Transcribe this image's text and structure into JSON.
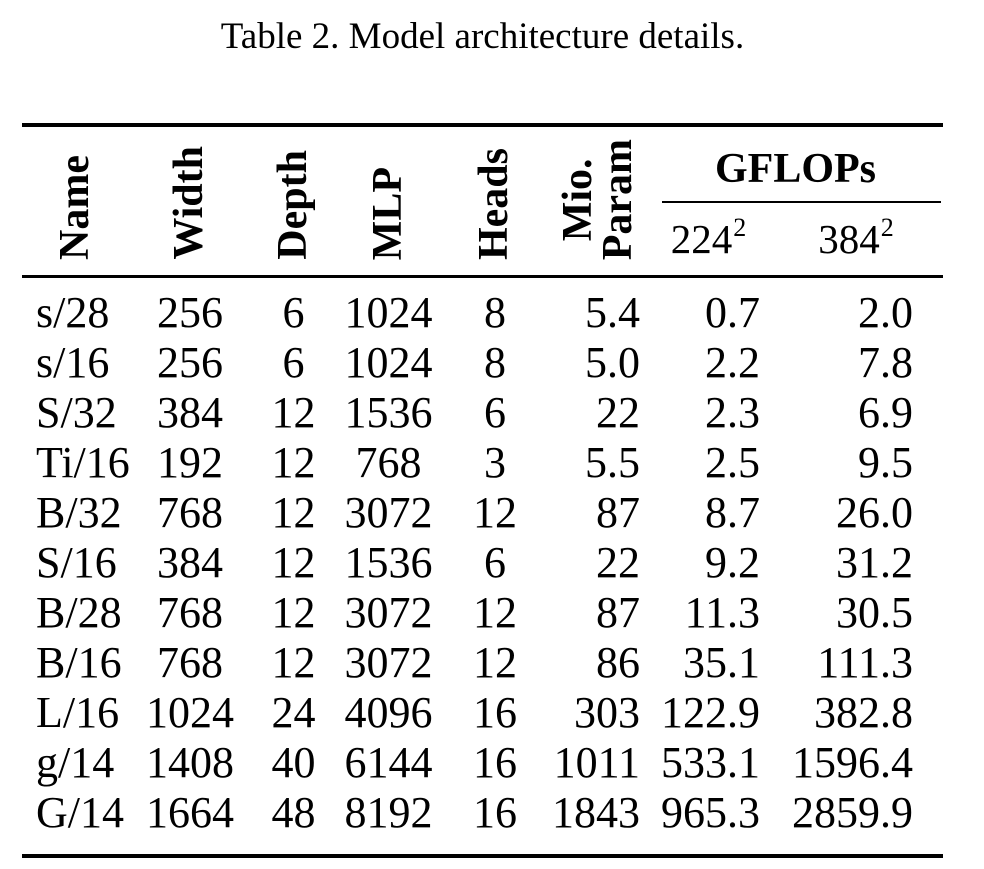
{
  "page": {
    "background": "#ffffff",
    "text_color": "#000000"
  },
  "caption": "Table 2. Model architecture details.",
  "table": {
    "headers": {
      "name": "Name",
      "width": "Width",
      "depth": "Depth",
      "mlp": "MLP",
      "heads": "Heads",
      "mio_param_line1": "Mio.",
      "mio_param_line2": "Param",
      "gflops": "GFLOPs",
      "gflops_224_base": "224",
      "gflops_224_sup": "2",
      "gflops_384_base": "384",
      "gflops_384_sup": "2"
    },
    "rows": [
      {
        "name": "s/28",
        "width": "256",
        "depth": "6",
        "mlp": "1024",
        "heads": "8",
        "mio_param": "5.4",
        "gflops_224": "0.7",
        "gflops_384": "2.0"
      },
      {
        "name": "s/16",
        "width": "256",
        "depth": "6",
        "mlp": "1024",
        "heads": "8",
        "mio_param": "5.0",
        "gflops_224": "2.2",
        "gflops_384": "7.8"
      },
      {
        "name": "S/32",
        "width": "384",
        "depth": "12",
        "mlp": "1536",
        "heads": "6",
        "mio_param": "22",
        "gflops_224": "2.3",
        "gflops_384": "6.9"
      },
      {
        "name": "Ti/16",
        "width": "192",
        "depth": "12",
        "mlp": "768",
        "heads": "3",
        "mio_param": "5.5",
        "gflops_224": "2.5",
        "gflops_384": "9.5"
      },
      {
        "name": "B/32",
        "width": "768",
        "depth": "12",
        "mlp": "3072",
        "heads": "12",
        "mio_param": "87",
        "gflops_224": "8.7",
        "gflops_384": "26.0"
      },
      {
        "name": "S/16",
        "width": "384",
        "depth": "12",
        "mlp": "1536",
        "heads": "6",
        "mio_param": "22",
        "gflops_224": "9.2",
        "gflops_384": "31.2"
      },
      {
        "name": "B/28",
        "width": "768",
        "depth": "12",
        "mlp": "3072",
        "heads": "12",
        "mio_param": "87",
        "gflops_224": "11.3",
        "gflops_384": "30.5"
      },
      {
        "name": "B/16",
        "width": "768",
        "depth": "12",
        "mlp": "3072",
        "heads": "12",
        "mio_param": "86",
        "gflops_224": "35.1",
        "gflops_384": "111.3"
      },
      {
        "name": "L/16",
        "width": "1024",
        "depth": "24",
        "mlp": "4096",
        "heads": "16",
        "mio_param": "303",
        "gflops_224": "122.9",
        "gflops_384": "382.8"
      },
      {
        "name": "g/14",
        "width": "1408",
        "depth": "40",
        "mlp": "6144",
        "heads": "16",
        "mio_param": "1011",
        "gflops_224": "533.1",
        "gflops_384": "1596.4"
      },
      {
        "name": "G/14",
        "width": "1664",
        "depth": "48",
        "mlp": "8192",
        "heads": "16",
        "mio_param": "1843",
        "gflops_224": "965.3",
        "gflops_384": "2859.9"
      }
    ]
  }
}
